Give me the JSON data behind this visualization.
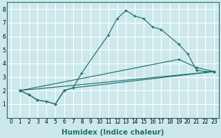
{
  "xlabel": "Humidex (Indice chaleur)",
  "xlim": [
    -0.5,
    23.5
  ],
  "ylim": [
    0,
    8.5
  ],
  "background_color": "#cce8ea",
  "grid_color": "#ffffff",
  "line_color": "#1e6e6e",
  "lines": [
    {
      "x": [
        1,
        2,
        3,
        4,
        5,
        6,
        7,
        8,
        11,
        12,
        13,
        14,
        15,
        16,
        17,
        19,
        20,
        21,
        22,
        23
      ],
      "y": [
        2.0,
        1.7,
        1.3,
        1.2,
        1.0,
        2.0,
        2.2,
        3.3,
        6.1,
        7.3,
        7.9,
        7.5,
        7.3,
        6.7,
        6.5,
        5.4,
        4.7,
        3.5,
        3.4,
        3.4
      ]
    },
    {
      "x": [
        1,
        2,
        3,
        4,
        5,
        6,
        7,
        23
      ],
      "y": [
        2.0,
        1.7,
        1.3,
        1.2,
        1.0,
        2.0,
        2.2,
        3.4
      ]
    },
    {
      "x": [
        1,
        19,
        21,
        23
      ],
      "y": [
        2.0,
        4.3,
        3.7,
        3.4
      ]
    },
    {
      "x": [
        1,
        23
      ],
      "y": [
        2.0,
        3.4
      ]
    }
  ],
  "xticks": [
    0,
    1,
    2,
    3,
    4,
    5,
    6,
    7,
    8,
    9,
    10,
    11,
    12,
    13,
    14,
    15,
    16,
    17,
    18,
    19,
    20,
    21,
    22,
    23
  ],
  "yticks": [
    1,
    2,
    3,
    4,
    5,
    6,
    7,
    8
  ],
  "tick_fontsize": 5.5,
  "xlabel_fontsize": 7.5
}
